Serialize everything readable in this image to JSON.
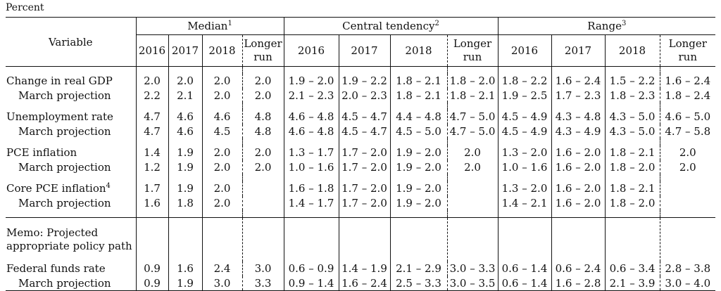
{
  "unit_label": "Percent",
  "header": {
    "variable": "Variable",
    "groups": [
      {
        "label": "Median",
        "note": "1"
      },
      {
        "label": "Central tendency",
        "note": "2"
      },
      {
        "label": "Range",
        "note": "3"
      }
    ],
    "years": [
      "2016",
      "2017",
      "2018"
    ],
    "longer_run": [
      "Longer",
      "run"
    ]
  },
  "rows": [
    {
      "label": "Change in real GDP",
      "note": "",
      "median": [
        "2.0",
        "2.0",
        "2.0",
        "2.0"
      ],
      "central": [
        "1.9 – 2.0",
        "1.9 – 2.2",
        "1.8 – 2.1",
        "1.8 – 2.0"
      ],
      "range": [
        "1.8 – 2.2",
        "1.6 – 2.4",
        "1.5 – 2.2",
        "1.6 – 2.4"
      ]
    },
    {
      "label": "March projection",
      "note": "",
      "median": [
        "2.2",
        "2.1",
        "2.0",
        "2.0"
      ],
      "central": [
        "2.1 – 2.3",
        "2.0 – 2.3",
        "1.8 – 2.1",
        "1.8 – 2.1"
      ],
      "range": [
        "1.9 – 2.5",
        "1.7 – 2.3",
        "1.8 – 2.3",
        "1.8 – 2.4"
      ]
    },
    {
      "label": "Unemployment rate",
      "note": "",
      "median": [
        "4.7",
        "4.6",
        "4.6",
        "4.8"
      ],
      "central": [
        "4.6 – 4.8",
        "4.5 – 4.7",
        "4.4 – 4.8",
        "4.7 – 5.0"
      ],
      "range": [
        "4.5 – 4.9",
        "4.3 – 4.8",
        "4.3 – 5.0",
        "4.6 – 5.0"
      ]
    },
    {
      "label": "March projection",
      "note": "",
      "median": [
        "4.7",
        "4.6",
        "4.5",
        "4.8"
      ],
      "central": [
        "4.6 – 4.8",
        "4.5 – 4.7",
        "4.5 – 5.0",
        "4.7 – 5.0"
      ],
      "range": [
        "4.5 – 4.9",
        "4.3 – 4.9",
        "4.3 – 5.0",
        "4.7 – 5.8"
      ]
    },
    {
      "label": "PCE inflation",
      "note": "",
      "median": [
        "1.4",
        "1.9",
        "2.0",
        "2.0"
      ],
      "central": [
        "1.3 – 1.7",
        "1.7 – 2.0",
        "1.9 – 2.0",
        "2.0"
      ],
      "range": [
        "1.3 – 2.0",
        "1.6 – 2.0",
        "1.8 – 2.1",
        "2.0"
      ]
    },
    {
      "label": "March projection",
      "note": "",
      "median": [
        "1.2",
        "1.9",
        "2.0",
        "2.0"
      ],
      "central": [
        "1.0 – 1.6",
        "1.7 – 2.0",
        "1.9 – 2.0",
        "2.0"
      ],
      "range": [
        "1.0 – 1.6",
        "1.6 – 2.0",
        "1.8 – 2.0",
        "2.0"
      ]
    },
    {
      "label": "Core PCE inflation",
      "note": "4",
      "median": [
        "1.7",
        "1.9",
        "2.0",
        ""
      ],
      "central": [
        "1.6 – 1.8",
        "1.7 – 2.0",
        "1.9 – 2.0",
        ""
      ],
      "range": [
        "1.3 – 2.0",
        "1.6 – 2.0",
        "1.8 – 2.1",
        ""
      ]
    },
    {
      "label": "March projection",
      "note": "",
      "median": [
        "1.6",
        "1.8",
        "2.0",
        ""
      ],
      "central": [
        "1.4 – 1.7",
        "1.7 – 2.0",
        "1.9 – 2.0",
        ""
      ],
      "range": [
        "1.4 – 2.1",
        "1.6 – 2.0",
        "1.8 – 2.0",
        ""
      ]
    }
  ],
  "memo": [
    "Memo: Projected",
    "appropriate policy path"
  ],
  "fed_rows": [
    {
      "label": "Federal funds rate",
      "median": [
        "0.9",
        "1.6",
        "2.4",
        "3.0"
      ],
      "central": [
        "0.6 – 0.9",
        "1.4 – 1.9",
        "2.1 – 2.9",
        "3.0 – 3.3"
      ],
      "range": [
        "0.6 – 1.4",
        "0.6 – 2.4",
        "0.6 – 3.4",
        "2.8 – 3.8"
      ]
    },
    {
      "label": "March projection",
      "median": [
        "0.9",
        "1.9",
        "3.0",
        "3.3"
      ],
      "central": [
        "0.9 – 1.4",
        "1.6 – 2.4",
        "2.5 – 3.3",
        "3.0 – 3.5"
      ],
      "range": [
        "0.6 – 1.4",
        "1.6 – 2.8",
        "2.1 – 3.9",
        "3.0 – 4.0"
      ]
    }
  ]
}
